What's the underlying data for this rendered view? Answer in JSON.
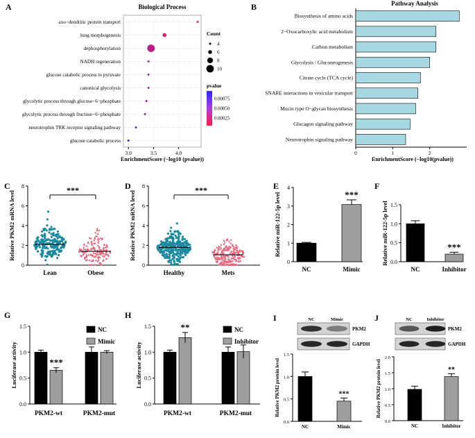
{
  "colors": {
    "pathway_bar": "#a8d8e2",
    "bar_black": "#000000",
    "bar_gray": "#9e9e9e",
    "teal": "#1a8aa0",
    "pink": "#e8637a",
    "pval_high": "#ff1a4a",
    "pval_low": "#2b2bff"
  },
  "panel_letters": [
    "A",
    "B",
    "C",
    "D",
    "E",
    "F",
    "G",
    "H",
    "I",
    "J"
  ],
  "chart_data": [
    {
      "id": "A",
      "type": "scatter",
      "title": "Biological Process",
      "xlabel": "EnrichmentScore (−log10 (pvalue))",
      "xlim": [
        2.9,
        4.45
      ],
      "xticks": [
        "3.0",
        "3.5",
        "4.0"
      ],
      "categories": [
        "axo−dendritic protein transport",
        "lung morphogenesis",
        "dephosphorylation",
        "NADH regeneration",
        "glucose catabolic process to pyruvate",
        "canonical glycolysis",
        "glycolytic process through glucose−6−phosphate",
        "glycolytic process through fructose−6−phosphate",
        "neurotrophin TRK receptor signaling pathway",
        "glucose catabolic process"
      ],
      "x": [
        4.38,
        3.72,
        3.45,
        3.4,
        3.4,
        3.4,
        3.36,
        3.33,
        3.15,
        3.0
      ],
      "count": [
        4,
        6,
        10,
        4,
        4,
        4,
        4,
        4,
        4,
        4
      ],
      "pvalue": [
        4e-05,
        0.0002,
        0.00035,
        0.0004,
        0.0004,
        0.0004,
        0.00044,
        0.00047,
        0.0007,
        0.001
      ],
      "size_legend_title": "Count",
      "size_legend": [
        "4",
        "6",
        "8",
        "10"
      ],
      "color_legend_title": "pvalue",
      "color_legend": [
        "0.00075",
        "0.00050",
        "0.00025"
      ]
    },
    {
      "id": "B",
      "type": "bar",
      "title": "Pathway Analysis",
      "xlabel": "EnrichmentScore (−log10(pvalue))",
      "xlim": [
        0,
        3
      ],
      "xticks": [
        "0",
        "1",
        "2"
      ],
      "categories": [
        "Biosynthesis of amino acids",
        "2−Oxocarboxylic acid metabolism",
        "Carbon metabolism",
        "Glycolysis / Gluconeogenesis",
        "Citrate cycle (TCA cycle)",
        "SNARE interactions in vesicular transport",
        "Mucin type O−glycan biosynthesis",
        "Glucagon signaling pathway",
        "Neurotrophin signaling pathway"
      ],
      "values": [
        2.8,
        2.17,
        2.17,
        2.0,
        1.75,
        1.68,
        1.62,
        1.47,
        1.35
      ]
    },
    {
      "id": "C",
      "type": "scatter",
      "ylabel": "Relative PKM2 mRNA level",
      "ylim": [
        0,
        8
      ],
      "yticks": [
        "0",
        "2",
        "4",
        "6",
        "8"
      ],
      "categories": [
        "Lean",
        "Obese"
      ],
      "medians": [
        2.1,
        1.4
      ],
      "significance": "***"
    },
    {
      "id": "D",
      "type": "scatter",
      "ylabel": "Relative PKM2 mRNA level",
      "ylim": [
        0,
        8
      ],
      "yticks": [
        "0",
        "2",
        "4",
        "6",
        "8"
      ],
      "categories": [
        "Healthy",
        "Mets"
      ],
      "medians": [
        1.8,
        1.05
      ],
      "significance": "***"
    },
    {
      "id": "E",
      "type": "bar",
      "ylabel": "Relative miR-122-5p level",
      "ylim": [
        0,
        4
      ],
      "yticks": [
        "0",
        "1",
        "2",
        "3",
        "4"
      ],
      "categories": [
        "NC",
        "Mimic"
      ],
      "values": [
        1.0,
        3.08
      ],
      "errors": [
        0.04,
        0.25
      ],
      "significance": [
        null,
        "***"
      ]
    },
    {
      "id": "F",
      "type": "bar",
      "ylabel": "Relative miR-122-5p level",
      "ylim": [
        0,
        1.5
      ],
      "yticks": [
        "0.0",
        "0.5",
        "1.0",
        "1.5"
      ],
      "categories": [
        "NC",
        "Inhibitor"
      ],
      "values": [
        1.0,
        0.2
      ],
      "errors": [
        0.08,
        0.05
      ],
      "significance": [
        null,
        "***"
      ]
    },
    {
      "id": "G",
      "type": "bar",
      "ylabel": "Luciferase activity",
      "ylim": [
        0,
        1.5
      ],
      "yticks": [
        "0.0",
        "0.5",
        "1.0",
        "1.5"
      ],
      "categories": [
        "PKM2-wt",
        "PKM2-mut"
      ],
      "series": [
        {
          "name": "NC",
          "values": [
            1.0,
            1.0
          ],
          "errors": [
            0.04,
            0.1
          ]
        },
        {
          "name": "Mimic",
          "values": [
            0.65,
            1.0
          ],
          "errors": [
            0.05,
            0.03
          ]
        }
      ],
      "significance": [
        "***",
        null
      ]
    },
    {
      "id": "H",
      "type": "bar",
      "ylabel": "Luciferase activity",
      "ylim": [
        0,
        1.5
      ],
      "yticks": [
        "0.0",
        "0.5",
        "1.0",
        "1.5"
      ],
      "categories": [
        "PKM2-wt",
        "PKM2-mut"
      ],
      "series": [
        {
          "name": "NC",
          "values": [
            1.0,
            1.0
          ],
          "errors": [
            0.04,
            0.1
          ]
        },
        {
          "name": "Inhibitor",
          "values": [
            1.28,
            1.01
          ],
          "errors": [
            0.1,
            0.13
          ]
        }
      ],
      "significance": [
        "**",
        null
      ]
    },
    {
      "id": "I",
      "type": "bar",
      "ylabel": "Relative PKM2 protein level",
      "ylim": [
        0,
        1.5
      ],
      "yticks": [
        "0.0",
        "0.5",
        "1.0",
        "1.5"
      ],
      "categories": [
        "NC",
        "Mimic"
      ],
      "values": [
        1.0,
        0.45
      ],
      "errors": [
        0.1,
        0.07
      ],
      "significance": [
        null,
        "***"
      ],
      "blot_lanes": [
        "NC",
        "Mimic"
      ],
      "blot_labels": [
        "PKM2",
        "GAPDH"
      ]
    },
    {
      "id": "J",
      "type": "bar",
      "ylabel": "Relative PKM2 protein level",
      "ylim": [
        0,
        2.0
      ],
      "yticks": [
        "0.0",
        "0.5",
        "1.0",
        "1.5",
        "2.0"
      ],
      "categories": [
        "NC",
        "Inhibitor"
      ],
      "values": [
        0.98,
        1.38
      ],
      "errors": [
        0.1,
        0.09
      ],
      "significance": [
        null,
        "**"
      ],
      "blot_lanes": [
        "NC",
        "Inhibitor"
      ],
      "blot_labels": [
        "PKM2",
        "GAPDH"
      ]
    }
  ]
}
